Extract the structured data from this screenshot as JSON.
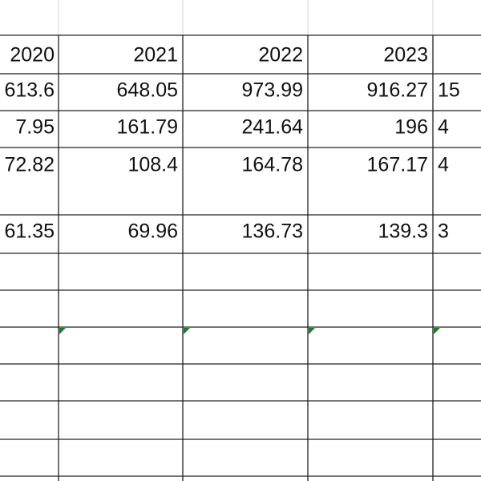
{
  "table": {
    "rows": [
      [
        "2020",
        "2021",
        "2022",
        "2023",
        ""
      ],
      [
        "613.6",
        "648.05",
        "973.99",
        "916.27",
        "15"
      ],
      [
        "7.95",
        "161.79",
        "241.64",
        "196",
        "4"
      ],
      [
        "72.82",
        "108.4",
        "164.78",
        "167.17",
        "4"
      ],
      [
        "61.35",
        "69.96",
        "136.73",
        "139.3",
        "3"
      ]
    ]
  }
}
